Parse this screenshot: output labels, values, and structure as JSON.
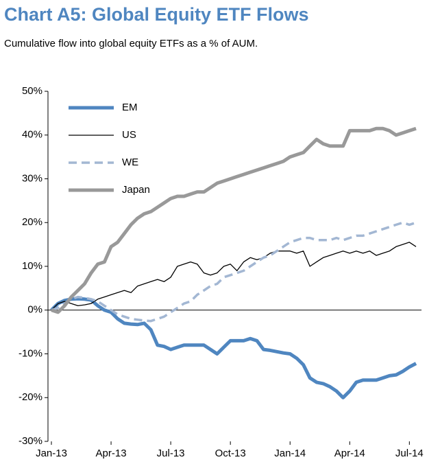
{
  "chart_data": {
    "type": "line",
    "title": "Chart A5: Global Equity ETF Flows",
    "subtitle": "Cumulative flow into global equity ETFs as a % of AUM.",
    "categories": [
      "Jan-13",
      null,
      null,
      null,
      null,
      null,
      null,
      null,
      null,
      "Apr-13",
      null,
      null,
      null,
      null,
      null,
      null,
      null,
      null,
      "Jul-13",
      null,
      null,
      null,
      null,
      null,
      null,
      null,
      null,
      "Oct-13",
      null,
      null,
      null,
      null,
      null,
      null,
      null,
      null,
      "Jan-14",
      null,
      null,
      null,
      null,
      null,
      null,
      null,
      null,
      "Apr-14",
      null,
      null,
      null,
      null,
      null,
      null,
      null,
      null,
      "Jul-14",
      null
    ],
    "series": [
      {
        "name": "EM",
        "color": "#4f86c0",
        "width": 5,
        "dash": false,
        "values": [
          0,
          1.5,
          2.2,
          2.5,
          2.6,
          2.5,
          2.3,
          1,
          0,
          -0.5,
          -2,
          -3,
          -3.2,
          -3.3,
          -3,
          -4.5,
          -8,
          -8.3,
          -9,
          -8.5,
          -8,
          -8,
          -8,
          -8,
          -9,
          -10,
          -8.5,
          -7,
          -7,
          -7,
          -6.5,
          -7,
          -9,
          -9.2,
          -9.5,
          -9.8,
          -10,
          -11,
          -12.5,
          -15.5,
          -16.5,
          -16.8,
          -17.5,
          -18.5,
          -20,
          -18.5,
          -16.5,
          -16,
          -16,
          -16,
          -15.5,
          -15,
          -14.8,
          -14,
          -13,
          -12.2
        ]
      },
      {
        "name": "US",
        "color": "#000000",
        "width": 1.3,
        "dash": false,
        "values": [
          0,
          1.5,
          2,
          1.5,
          1,
          1.2,
          1.5,
          2.5,
          3,
          3.5,
          4,
          4.5,
          4,
          5.5,
          6,
          6.5,
          7,
          6.5,
          7.5,
          10,
          10.5,
          11,
          10.5,
          8.5,
          8,
          8.5,
          10,
          10.5,
          9,
          11,
          12,
          11.5,
          12,
          13,
          13.5,
          13.5,
          13.5,
          13,
          13.5,
          10,
          11,
          12,
          12.5,
          13,
          13.5,
          13,
          13.5,
          13,
          13.5,
          12.5,
          13,
          13.5,
          14.5,
          15,
          15.5,
          14.5
        ]
      },
      {
        "name": "WE",
        "color": "#a3b7d3",
        "width": 3.5,
        "dash": true,
        "values": [
          0,
          0.5,
          1.5,
          2.5,
          3,
          2.8,
          2.5,
          2,
          1,
          0,
          -1,
          -1.5,
          -2,
          -2.2,
          -2.4,
          -2.5,
          -2,
          -1.5,
          -0.5,
          0.5,
          1.5,
          2,
          3.5,
          4.5,
          5.5,
          6,
          7.5,
          8,
          8.5,
          9,
          10,
          11,
          12,
          12.5,
          13.5,
          14.5,
          15.5,
          16,
          16.5,
          16.5,
          16,
          16,
          16,
          16.5,
          16,
          16.5,
          17,
          17,
          17.5,
          18,
          18.5,
          19,
          19.5,
          20,
          19.5,
          20
        ]
      },
      {
        "name": "Japan",
        "color": "#999999",
        "width": 5,
        "dash": false,
        "values": [
          0,
          -0.5,
          1,
          3,
          4.5,
          6,
          8.5,
          10.5,
          11,
          14.5,
          15.5,
          17.5,
          19.5,
          21,
          22,
          22.5,
          23.5,
          24.5,
          25.5,
          26,
          26,
          26.5,
          27,
          27,
          28,
          29,
          29.5,
          30,
          30.5,
          31,
          31.5,
          32,
          32.5,
          33,
          33.5,
          34,
          35,
          35.5,
          36,
          37.5,
          39,
          38,
          37.5,
          37.5,
          37.5,
          41,
          41,
          41,
          41,
          41.5,
          41.5,
          41,
          40,
          40.5,
          41,
          41.5
        ]
      }
    ],
    "ylim": [
      -30,
      50
    ],
    "yticks": [
      {
        "value": -30,
        "label": "-30%"
      },
      {
        "value": -20,
        "label": "-20%"
      },
      {
        "value": -10,
        "label": "-10%"
      },
      {
        "value": 0,
        "label": "0%"
      },
      {
        "value": 10,
        "label": "10%"
      },
      {
        "value": 20,
        "label": "20%"
      },
      {
        "value": 30,
        "label": "30%"
      },
      {
        "value": 40,
        "label": "40%"
      },
      {
        "value": 50,
        "label": "50%"
      }
    ],
    "grid": false,
    "legend": "upper-left"
  }
}
